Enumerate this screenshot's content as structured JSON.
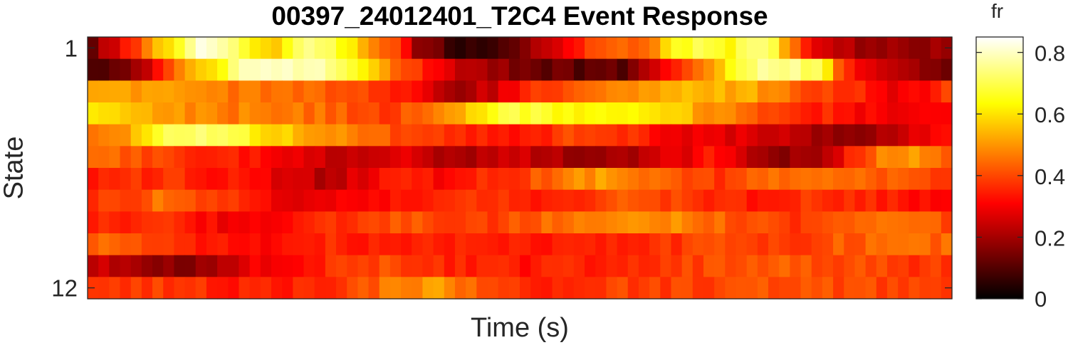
{
  "chart_data": {
    "type": "heatmap",
    "title": "00397_24012401_T2C4 Event Response",
    "xlabel": "Time (s)",
    "ylabel": "State",
    "y_tick_labels": [
      "1",
      "12"
    ],
    "x_tick_labels": [],
    "rows": 12,
    "cols": 80,
    "colormap": "hot",
    "colorbar": {
      "label": "fr",
      "ticks": [
        0,
        0.2,
        0.4,
        0.6,
        0.8
      ],
      "tick_labels": [
        "0",
        "0.2",
        "0.4",
        "0.6",
        "0.8"
      ],
      "clim": [
        0,
        0.85
      ]
    },
    "row_profiles": [
      [
        [
          0,
          0.12
        ],
        [
          6,
          0.42
        ],
        [
          10,
          0.65
        ],
        [
          13,
          0.85
        ],
        [
          16,
          0.78
        ],
        [
          19,
          0.6
        ],
        [
          22,
          0.55
        ],
        [
          24,
          0.72
        ],
        [
          27,
          0.75
        ],
        [
          30,
          0.6
        ],
        [
          35,
          0.42
        ],
        [
          38,
          0.18
        ],
        [
          42,
          0.08
        ],
        [
          45,
          0.03
        ],
        [
          48,
          0.08
        ],
        [
          52,
          0.22
        ],
        [
          56,
          0.36
        ],
        [
          60,
          0.42
        ],
        [
          64,
          0.45
        ],
        [
          67,
          0.62
        ],
        [
          70,
          0.72
        ],
        [
          73,
          0.62
        ],
        [
          76,
          0.72
        ],
        [
          79,
          0.72
        ],
        [
          80,
          0.48
        ],
        [
          83,
          0.3
        ],
        [
          86,
          0.22
        ],
        [
          90,
          0.18
        ],
        [
          95,
          0.18
        ],
        [
          99,
          0.2
        ]
      ],
      [
        [
          0,
          0.1
        ],
        [
          4,
          0.14
        ],
        [
          8,
          0.3
        ],
        [
          12,
          0.55
        ],
        [
          15,
          0.62
        ],
        [
          18,
          0.8
        ],
        [
          25,
          0.8
        ],
        [
          30,
          0.72
        ],
        [
          34,
          0.5
        ],
        [
          38,
          0.38
        ],
        [
          42,
          0.26
        ],
        [
          46,
          0.2
        ],
        [
          50,
          0.14
        ],
        [
          55,
          0.12
        ],
        [
          58,
          0.1
        ],
        [
          62,
          0.12
        ],
        [
          65,
          0.25
        ],
        [
          68,
          0.4
        ],
        [
          72,
          0.55
        ],
        [
          75,
          0.72
        ],
        [
          79,
          0.78
        ],
        [
          84,
          0.7
        ],
        [
          86,
          0.42
        ],
        [
          89,
          0.28
        ],
        [
          93,
          0.22
        ],
        [
          97,
          0.16
        ],
        [
          99,
          0.14
        ]
      ],
      [
        [
          0,
          0.5
        ],
        [
          8,
          0.52
        ],
        [
          14,
          0.48
        ],
        [
          20,
          0.45
        ],
        [
          28,
          0.42
        ],
        [
          34,
          0.38
        ],
        [
          38,
          0.3
        ],
        [
          42,
          0.2
        ],
        [
          46,
          0.24
        ],
        [
          50,
          0.36
        ],
        [
          56,
          0.42
        ],
        [
          62,
          0.48
        ],
        [
          66,
          0.52
        ],
        [
          70,
          0.54
        ],
        [
          76,
          0.52
        ],
        [
          82,
          0.42
        ],
        [
          88,
          0.36
        ],
        [
          92,
          0.3
        ],
        [
          96,
          0.32
        ],
        [
          99,
          0.4
        ]
      ],
      [
        [
          0,
          0.6
        ],
        [
          5,
          0.56
        ],
        [
          10,
          0.5
        ],
        [
          15,
          0.46
        ],
        [
          20,
          0.48
        ],
        [
          26,
          0.45
        ],
        [
          30,
          0.42
        ],
        [
          34,
          0.38
        ],
        [
          38,
          0.44
        ],
        [
          42,
          0.52
        ],
        [
          45,
          0.6
        ],
        [
          48,
          0.68
        ],
        [
          52,
          0.66
        ],
        [
          56,
          0.64
        ],
        [
          60,
          0.62
        ],
        [
          63,
          0.6
        ],
        [
          67,
          0.58
        ],
        [
          70,
          0.52
        ],
        [
          74,
          0.46
        ],
        [
          78,
          0.4
        ],
        [
          82,
          0.36
        ],
        [
          86,
          0.34
        ],
        [
          90,
          0.3
        ],
        [
          95,
          0.28
        ],
        [
          99,
          0.3
        ]
      ],
      [
        [
          0,
          0.42
        ],
        [
          4,
          0.5
        ],
        [
          7,
          0.64
        ],
        [
          10,
          0.7
        ],
        [
          14,
          0.72
        ],
        [
          17,
          0.7
        ],
        [
          20,
          0.6
        ],
        [
          24,
          0.55
        ],
        [
          28,
          0.5
        ],
        [
          32,
          0.45
        ],
        [
          36,
          0.4
        ],
        [
          40,
          0.38
        ],
        [
          44,
          0.36
        ],
        [
          48,
          0.34
        ],
        [
          52,
          0.36
        ],
        [
          56,
          0.4
        ],
        [
          60,
          0.38
        ],
        [
          64,
          0.34
        ],
        [
          68,
          0.3
        ],
        [
          72,
          0.28
        ],
        [
          76,
          0.26
        ],
        [
          80,
          0.24
        ],
        [
          84,
          0.2
        ],
        [
          88,
          0.18
        ],
        [
          92,
          0.24
        ],
        [
          96,
          0.3
        ],
        [
          99,
          0.34
        ]
      ],
      [
        [
          0,
          0.45
        ],
        [
          6,
          0.42
        ],
        [
          10,
          0.36
        ],
        [
          16,
          0.34
        ],
        [
          22,
          0.32
        ],
        [
          26,
          0.25
        ],
        [
          30,
          0.22
        ],
        [
          36,
          0.28
        ],
        [
          40,
          0.22
        ],
        [
          44,
          0.22
        ],
        [
          50,
          0.24
        ],
        [
          56,
          0.2
        ],
        [
          60,
          0.18
        ],
        [
          64,
          0.24
        ],
        [
          68,
          0.28
        ],
        [
          72,
          0.34
        ],
        [
          76,
          0.24
        ],
        [
          80,
          0.18
        ],
        [
          84,
          0.2
        ],
        [
          86,
          0.28
        ],
        [
          90,
          0.45
        ],
        [
          94,
          0.52
        ],
        [
          97,
          0.44
        ],
        [
          99,
          0.4
        ]
      ],
      [
        [
          0,
          0.32
        ],
        [
          5,
          0.36
        ],
        [
          10,
          0.38
        ],
        [
          15,
          0.34
        ],
        [
          20,
          0.3
        ],
        [
          24,
          0.24
        ],
        [
          28,
          0.22
        ],
        [
          32,
          0.3
        ],
        [
          36,
          0.36
        ],
        [
          40,
          0.32
        ],
        [
          44,
          0.36
        ],
        [
          48,
          0.38
        ],
        [
          52,
          0.42
        ],
        [
          56,
          0.48
        ],
        [
          60,
          0.52
        ],
        [
          64,
          0.46
        ],
        [
          68,
          0.4
        ],
        [
          72,
          0.38
        ],
        [
          76,
          0.42
        ],
        [
          80,
          0.46
        ],
        [
          84,
          0.48
        ],
        [
          88,
          0.44
        ],
        [
          92,
          0.42
        ],
        [
          96,
          0.4
        ],
        [
          99,
          0.36
        ]
      ],
      [
        [
          0,
          0.36
        ],
        [
          5,
          0.4
        ],
        [
          9,
          0.46
        ],
        [
          12,
          0.42
        ],
        [
          16,
          0.38
        ],
        [
          20,
          0.32
        ],
        [
          24,
          0.28
        ],
        [
          28,
          0.3
        ],
        [
          32,
          0.3
        ],
        [
          36,
          0.34
        ],
        [
          40,
          0.38
        ],
        [
          44,
          0.4
        ],
        [
          48,
          0.36
        ],
        [
          52,
          0.34
        ],
        [
          56,
          0.36
        ],
        [
          60,
          0.4
        ],
        [
          64,
          0.42
        ],
        [
          68,
          0.38
        ],
        [
          72,
          0.36
        ],
        [
          76,
          0.34
        ],
        [
          80,
          0.36
        ],
        [
          84,
          0.38
        ],
        [
          88,
          0.36
        ],
        [
          92,
          0.34
        ],
        [
          96,
          0.32
        ],
        [
          99,
          0.34
        ]
      ],
      [
        [
          0,
          0.36
        ],
        [
          5,
          0.34
        ],
        [
          10,
          0.36
        ],
        [
          16,
          0.3
        ],
        [
          20,
          0.3
        ],
        [
          24,
          0.32
        ],
        [
          28,
          0.36
        ],
        [
          32,
          0.38
        ],
        [
          36,
          0.42
        ],
        [
          40,
          0.4
        ],
        [
          44,
          0.38
        ],
        [
          48,
          0.4
        ],
        [
          52,
          0.44
        ],
        [
          56,
          0.46
        ],
        [
          60,
          0.48
        ],
        [
          64,
          0.5
        ],
        [
          68,
          0.48
        ],
        [
          72,
          0.44
        ],
        [
          76,
          0.4
        ],
        [
          80,
          0.38
        ],
        [
          84,
          0.4
        ],
        [
          88,
          0.42
        ],
        [
          92,
          0.44
        ],
        [
          96,
          0.42
        ],
        [
          99,
          0.4
        ]
      ],
      [
        [
          0,
          0.44
        ],
        [
          6,
          0.4
        ],
        [
          10,
          0.38
        ],
        [
          14,
          0.34
        ],
        [
          20,
          0.32
        ],
        [
          26,
          0.36
        ],
        [
          32,
          0.34
        ],
        [
          38,
          0.36
        ],
        [
          44,
          0.36
        ],
        [
          50,
          0.34
        ],
        [
          56,
          0.34
        ],
        [
          62,
          0.36
        ],
        [
          68,
          0.38
        ],
        [
          74,
          0.4
        ],
        [
          80,
          0.38
        ],
        [
          86,
          0.42
        ],
        [
          92,
          0.44
        ],
        [
          99,
          0.44
        ]
      ],
      [
        [
          0,
          0.26
        ],
        [
          5,
          0.22
        ],
        [
          10,
          0.16
        ],
        [
          14,
          0.2
        ],
        [
          18,
          0.28
        ],
        [
          22,
          0.32
        ],
        [
          28,
          0.36
        ],
        [
          34,
          0.4
        ],
        [
          40,
          0.36
        ],
        [
          46,
          0.34
        ],
        [
          52,
          0.34
        ],
        [
          58,
          0.36
        ],
        [
          64,
          0.38
        ],
        [
          70,
          0.4
        ],
        [
          76,
          0.44
        ],
        [
          82,
          0.42
        ],
        [
          88,
          0.4
        ],
        [
          94,
          0.38
        ],
        [
          99,
          0.38
        ]
      ],
      [
        [
          0,
          0.36
        ],
        [
          8,
          0.38
        ],
        [
          14,
          0.36
        ],
        [
          20,
          0.34
        ],
        [
          26,
          0.36
        ],
        [
          32,
          0.42
        ],
        [
          36,
          0.48
        ],
        [
          40,
          0.5
        ],
        [
          44,
          0.44
        ],
        [
          48,
          0.4
        ],
        [
          52,
          0.36
        ],
        [
          58,
          0.38
        ],
        [
          64,
          0.4
        ],
        [
          70,
          0.38
        ],
        [
          76,
          0.4
        ],
        [
          82,
          0.42
        ],
        [
          88,
          0.4
        ],
        [
          94,
          0.38
        ],
        [
          99,
          0.38
        ]
      ]
    ]
  }
}
